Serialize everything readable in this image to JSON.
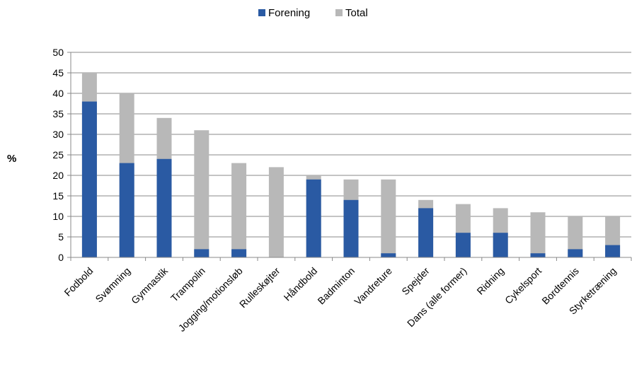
{
  "chart_data": {
    "type": "bar",
    "stacking": "overlapped",
    "categories": [
      "Fodbold",
      "Svømning",
      "Gymnastik",
      "Trampolin",
      "Jogging/motionsløb",
      "Rulleskøjter",
      "Håndbold",
      "Badminton",
      "Vandreture",
      "Spejder",
      "Dans (alle former)",
      "Ridning",
      "Cykelsport",
      "Bordtennis",
      "Styrketræning"
    ],
    "series": [
      {
        "name": "Forening",
        "color": "#2a5aa3",
        "values": [
          38,
          23,
          24,
          2,
          2,
          0,
          19,
          14,
          1,
          12,
          6,
          6,
          1,
          2,
          3
        ]
      },
      {
        "name": "Total",
        "color": "#b8b8b8",
        "values": [
          45,
          40,
          34,
          31,
          23,
          22,
          20,
          19,
          19,
          14,
          13,
          12,
          11,
          10,
          10
        ]
      }
    ],
    "title": "",
    "xlabel": "",
    "ylabel": "%",
    "ylim": [
      0,
      50
    ],
    "yticks": [
      0,
      5,
      10,
      15,
      20,
      25,
      30,
      35,
      40,
      45,
      50
    ],
    "grid": true,
    "legend": "top-center"
  }
}
